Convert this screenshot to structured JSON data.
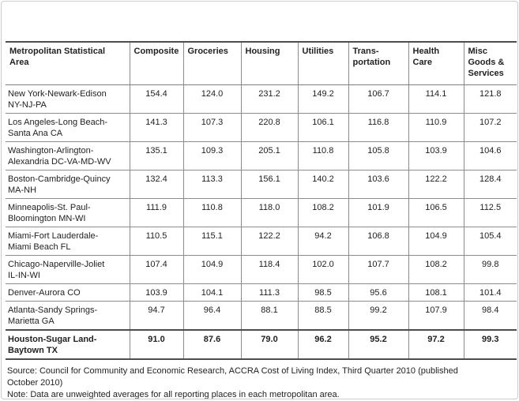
{
  "colors": {
    "background": "#ffffff",
    "text": "#222222",
    "grid_line": "#8c8c8c",
    "heavy_line": "#4d4d4d",
    "frame_border": "#cccccc"
  },
  "table": {
    "columns": [
      "Metropolitan Statistical\nArea",
      "Composite",
      "Groceries",
      "Housing",
      "Utilities",
      "Trans-\nportation",
      "Health\nCare",
      "Misc\nGoods &\nServices"
    ],
    "rows": [
      {
        "area": "New York-Newark-Edison\nNY-NJ-PA",
        "values": [
          "154.4",
          "124.0",
          "231.2",
          "149.2",
          "106.7",
          "114.1",
          "121.8"
        ],
        "bold": false
      },
      {
        "area": "Los Angeles-Long Beach-\nSanta Ana CA",
        "values": [
          "141.3",
          "107.3",
          "220.8",
          "106.1",
          "116.8",
          "110.9",
          "107.2"
        ],
        "bold": false
      },
      {
        "area": "Washington-Arlington-\nAlexandria DC-VA-MD-WV",
        "values": [
          "135.1",
          "109.3",
          "205.1",
          "110.8",
          "105.8",
          "103.9",
          "104.6"
        ],
        "bold": false
      },
      {
        "area": "Boston-Cambridge-Quincy\nMA-NH",
        "values": [
          "132.4",
          "113.3",
          "156.1",
          "140.2",
          "103.6",
          "122.2",
          "128.4"
        ],
        "bold": false
      },
      {
        "area": "Minneapolis-St. Paul-\nBloomington MN-WI",
        "values": [
          "111.9",
          "110.8",
          "118.0",
          "108.2",
          "101.9",
          "106.5",
          "112.5"
        ],
        "bold": false
      },
      {
        "area": "Miami-Fort Lauderdale-\nMiami Beach FL",
        "values": [
          "110.5",
          "115.1",
          "122.2",
          "94.2",
          "106.8",
          "104.9",
          "105.4"
        ],
        "bold": false
      },
      {
        "area": "Chicago-Naperville-Joliet\nIL-IN-WI",
        "values": [
          "107.4",
          "104.9",
          "118.4",
          "102.0",
          "107.7",
          "108.2",
          "99.8"
        ],
        "bold": false
      },
      {
        "area": "Denver-Aurora CO",
        "values": [
          "103.9",
          "104.1",
          "111.3",
          "98.5",
          "95.6",
          "108.1",
          "101.4"
        ],
        "bold": false
      },
      {
        "area": "Atlanta-Sandy Springs-\nMarietta GA",
        "values": [
          "94.7",
          "96.4",
          "88.1",
          "88.5",
          "99.2",
          "107.9",
          "98.4"
        ],
        "bold": false
      },
      {
        "area": "Houston-Sugar Land-\nBaytown TX",
        "values": [
          "91.0",
          "87.6",
          "79.0",
          "96.2",
          "95.2",
          "97.2",
          "99.3"
        ],
        "bold": true
      }
    ]
  },
  "footer": {
    "source": "Source: Council for Community and Economic Research, ACCRA Cost of Living Index, Third Quarter 2010 (published\nOctober 2010)",
    "note": "Note: Data are unweighted averages for all reporting places in each metropolitan area."
  },
  "chart_data": {
    "type": "table",
    "row_header": "Metropolitan Statistical Area",
    "categories": [
      "New York-Newark-Edison NY-NJ-PA",
      "Los Angeles-Long Beach-Santa Ana CA",
      "Washington-Arlington-Alexandria DC-VA-MD-WV",
      "Boston-Cambridge-Quincy MA-NH",
      "Minneapolis-St. Paul-Bloomington MN-WI",
      "Miami-Fort Lauderdale-Miami Beach FL",
      "Chicago-Naperville-Joliet IL-IN-WI",
      "Denver-Aurora CO",
      "Atlanta-Sandy Springs-Marietta GA",
      "Houston-Sugar Land-Baytown TX"
    ],
    "series": [
      {
        "name": "Composite",
        "values": [
          154.4,
          141.3,
          135.1,
          132.4,
          111.9,
          110.5,
          107.4,
          103.9,
          94.7,
          91.0
        ]
      },
      {
        "name": "Groceries",
        "values": [
          124.0,
          107.3,
          109.3,
          113.3,
          110.8,
          115.1,
          104.9,
          104.1,
          96.4,
          87.6
        ]
      },
      {
        "name": "Housing",
        "values": [
          231.2,
          220.8,
          205.1,
          156.1,
          118.0,
          122.2,
          118.4,
          111.3,
          88.1,
          79.0
        ]
      },
      {
        "name": "Utilities",
        "values": [
          149.2,
          106.1,
          110.8,
          140.2,
          108.2,
          94.2,
          102.0,
          98.5,
          88.5,
          96.2
        ]
      },
      {
        "name": "Transportation",
        "values": [
          106.7,
          116.8,
          105.8,
          103.6,
          101.9,
          106.8,
          107.7,
          95.6,
          99.2,
          95.2
        ]
      },
      {
        "name": "Health Care",
        "values": [
          114.1,
          110.9,
          103.9,
          122.2,
          106.5,
          104.9,
          108.2,
          108.1,
          107.9,
          97.2
        ]
      },
      {
        "name": "Misc Goods & Services",
        "values": [
          121.8,
          107.2,
          104.6,
          128.4,
          112.5,
          105.4,
          99.8,
          101.4,
          98.4,
          99.3
        ]
      }
    ],
    "highlighted_row": "Houston-Sugar Land-Baytown TX",
    "legend_position": "none",
    "grid": true
  }
}
